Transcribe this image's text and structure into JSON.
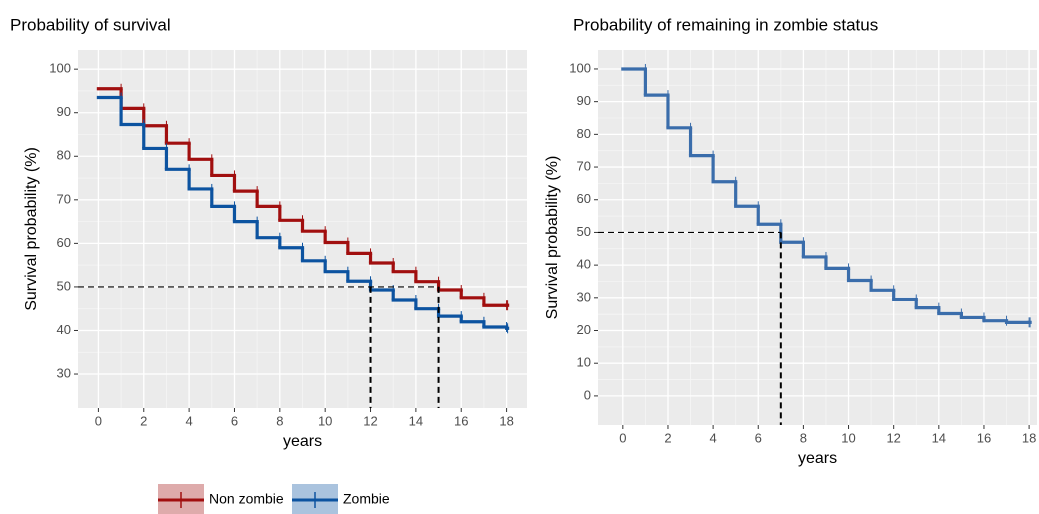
{
  "chart_data": [
    {
      "type": "step",
      "title": "Probability of survival",
      "x_label": "years",
      "y_label": "Survival probability (%)",
      "x": [
        0,
        1,
        2,
        3,
        4,
        5,
        6,
        7,
        8,
        9,
        10,
        11,
        12,
        13,
        14,
        15,
        16,
        17,
        18
      ],
      "series": [
        {
          "name": "Non zombie",
          "color": "#a10f0f",
          "values": [
            95.5,
            91,
            87,
            83,
            79.3,
            75.6,
            72,
            68.5,
            65.3,
            62.8,
            60.2,
            57.7,
            55.5,
            53.5,
            51.2,
            49.3,
            47.5,
            45.8,
            45.8
          ]
        },
        {
          "name": "Zombie",
          "color": "#0c53a0",
          "values": [
            93.5,
            87.3,
            81.8,
            77,
            72.5,
            68.5,
            65,
            61.3,
            59,
            56,
            53.5,
            51.3,
            49.3,
            47,
            45,
            43.3,
            42,
            40.8,
            40.5
          ]
        }
      ],
      "xlim": [
        -0.9,
        18.9
      ],
      "xticks": [
        0,
        2,
        4,
        6,
        8,
        10,
        12,
        14,
        16,
        18
      ],
      "ylim": [
        22.2,
        104.4
      ],
      "yticks": [
        30,
        40,
        50,
        60,
        70,
        80,
        90,
        100
      ],
      "reference_lines": {
        "y": 50,
        "x": [
          12,
          15
        ]
      },
      "grid": true,
      "legend": "bottom"
    },
    {
      "type": "step",
      "title": "Probability of remaining in zombie status",
      "x_label": "years",
      "y_label": "Survival probability (%)",
      "x": [
        0,
        1,
        2,
        3,
        4,
        5,
        6,
        7,
        8,
        9,
        10,
        11,
        12,
        13,
        14,
        15,
        16,
        17,
        18
      ],
      "series": [
        {
          "color": "#3a6dab",
          "values": [
            100,
            92,
            82,
            73.5,
            65.5,
            58,
            52.5,
            47,
            42.5,
            39,
            35.3,
            32.3,
            29.5,
            27,
            25.2,
            24,
            23,
            22.5,
            22.5
          ]
        }
      ],
      "xlim": [
        -1.1,
        18.35
      ],
      "xticks": [
        0,
        2,
        4,
        6,
        8,
        10,
        12,
        14,
        16,
        18
      ],
      "ylim": [
        -8.9,
        105.8
      ],
      "yticks": [
        0,
        10,
        20,
        30,
        40,
        50,
        60,
        70,
        80,
        90,
        100
      ],
      "reference_lines": {
        "y": 50,
        "x": [
          7
        ]
      },
      "grid": true
    }
  ]
}
